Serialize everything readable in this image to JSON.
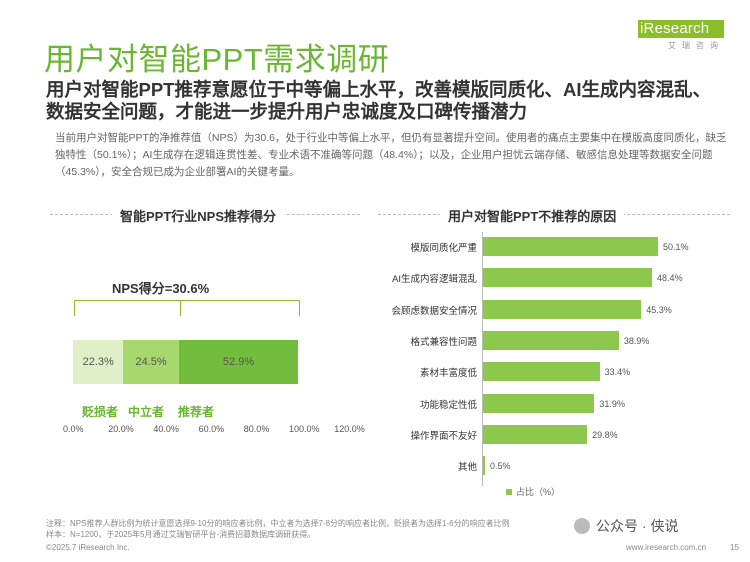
{
  "header": {
    "title": "用户对智能PPT需求调研",
    "logo_text": "iResearch",
    "logo_sub": "艾瑞咨询"
  },
  "headline": "用户对智能PPT推荐意愿位于中等偏上水平，改善模版同质化、AI生成内容混乱、数据安全问题，才能进一步提升用户忠诚度及口碑传播潜力",
  "summary": "当前用户对智能PPT的净推荐值（NPS）为30.6，处于行业中等偏上水平，但仍有显著提升空间。使用者的痛点主要集中在模版高度同质化，缺乏独特性（50.1%）；AI生成存在逻辑连贯性差、专业术语不准确等问题（48.4%）；以及，企业用户担忧云端存储、敏感信息处理等数据安全问题（45.3%），安全合规已成为企业部署AI的关键考量。",
  "colors": {
    "brand_green": "#6bb631",
    "detractor": "#dff0c8",
    "passive": "#a7d86d",
    "promoter": "#73bd3e",
    "bar": "#8cc84b"
  },
  "chart_data": [
    {
      "type": "bar",
      "orientation": "horizontal-stacked",
      "title": "智能PPT行业NPS推荐得分",
      "annotation": "NPS得分=30.6%",
      "categories": [
        "NPS"
      ],
      "series": [
        {
          "name": "贬损者",
          "values": [
            22.3
          ],
          "label": "22.3%"
        },
        {
          "name": "中立者",
          "values": [
            24.5
          ],
          "label": "24.5%"
        },
        {
          "name": "推荐者",
          "values": [
            52.9
          ],
          "label": "52.9%"
        }
      ],
      "xlim": [
        0,
        120
      ],
      "x_ticks": [
        "0.0%",
        "20.0%",
        "40.0%",
        "60.0%",
        "80.0%",
        "100.0%",
        "120.0%"
      ],
      "grid": false
    },
    {
      "type": "bar",
      "orientation": "horizontal",
      "title": "用户对智能PPT不推荐的原因",
      "categories": [
        "模版同质化严重",
        "AI生成内容逻辑混乱",
        "会顾虑数据安全情况",
        "格式兼容性问题",
        "素材丰富度低",
        "功能稳定性低",
        "操作界面不友好",
        "其他"
      ],
      "values": [
        50.1,
        48.4,
        45.3,
        38.9,
        33.4,
        31.9,
        29.8,
        0.5
      ],
      "value_labels": [
        "50.1%",
        "48.4%",
        "45.3%",
        "38.9%",
        "33.4%",
        "31.9%",
        "29.8%",
        "0.5%"
      ],
      "series_name": "占比（%）",
      "xlim": [
        0,
        55
      ],
      "grid": false,
      "legend": "bottom"
    }
  ],
  "footnote": "注释：NPS推荐人群比例为统计意愿选择9-10分的响应者比例，中立者为选择7-8分的响应者比例，贬损者为选择1-6分的响应者比例\n样本：N=1200，于2025年5月通过艾瑞智研平台-消费招募数据库调研获得。",
  "footer": {
    "copyright": "©2025.7 iResearch Inc.",
    "url": "www.iresearch.com.cn",
    "page": "15"
  },
  "watermark": "公众号 · 侠说"
}
